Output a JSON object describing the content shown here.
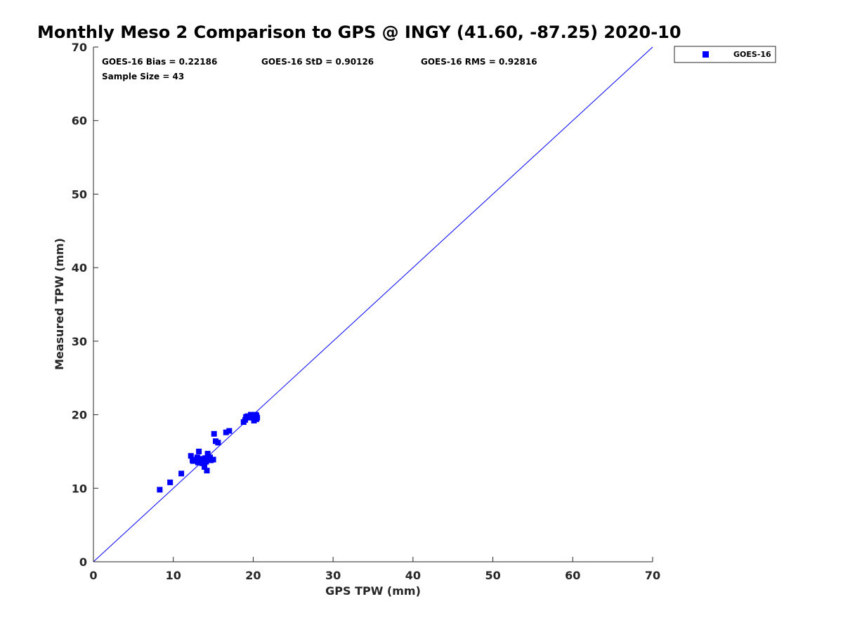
{
  "chart_data": {
    "type": "scatter",
    "title": "Monthly Meso 2 Comparison to GPS @ INGY (41.60, -87.25) 2020-10",
    "xlabel": "GPS TPW (mm)",
    "ylabel": "Measured TPW (mm)",
    "xlim": [
      0,
      70
    ],
    "ylim": [
      0,
      70
    ],
    "xticks": [
      "0",
      "10",
      "20",
      "30",
      "40",
      "50",
      "60",
      "70"
    ],
    "yticks": [
      "0",
      "10",
      "20",
      "30",
      "40",
      "50",
      "60",
      "70"
    ],
    "grid": false,
    "legend_position": "outside top-right",
    "reference_line": {
      "x": [
        0,
        70
      ],
      "y": [
        0,
        70
      ]
    },
    "annotations": {
      "bias": "GOES-16 Bias = 0.22186",
      "std": "GOES-16 StD = 0.90126",
      "rms": "GOES-16 RMS = 0.92816",
      "sample_size": "Sample Size = 43"
    },
    "series": [
      {
        "name": "GOES-16",
        "color": "#0000ff",
        "marker": "square",
        "points": [
          [
            8.3,
            9.8
          ],
          [
            9.6,
            10.8
          ],
          [
            11.0,
            12.0
          ],
          [
            12.2,
            14.4
          ],
          [
            12.4,
            13.8
          ],
          [
            12.5,
            13.7
          ],
          [
            12.9,
            13.9
          ],
          [
            13.0,
            14.2
          ],
          [
            13.1,
            13.5
          ],
          [
            13.2,
            15.0
          ],
          [
            13.4,
            13.6
          ],
          [
            13.5,
            14.0
          ],
          [
            13.6,
            13.4
          ],
          [
            13.7,
            13.9
          ],
          [
            13.8,
            13.6
          ],
          [
            13.9,
            12.9
          ],
          [
            14.0,
            14.1
          ],
          [
            14.1,
            13.6
          ],
          [
            14.2,
            12.4
          ],
          [
            14.3,
            14.7
          ],
          [
            14.4,
            13.9
          ],
          [
            14.6,
            14.2
          ],
          [
            14.7,
            13.8
          ],
          [
            15.0,
            13.9
          ],
          [
            15.1,
            17.4
          ],
          [
            15.3,
            16.4
          ],
          [
            15.6,
            16.2
          ],
          [
            16.6,
            17.6
          ],
          [
            17.0,
            17.8
          ],
          [
            18.8,
            19.0
          ],
          [
            19.0,
            19.3
          ],
          [
            19.1,
            19.7
          ],
          [
            19.3,
            19.8
          ],
          [
            19.5,
            19.6
          ],
          [
            19.7,
            20.0
          ],
          [
            19.9,
            19.8
          ],
          [
            20.0,
            19.9
          ],
          [
            20.1,
            19.2
          ],
          [
            20.2,
            19.6
          ],
          [
            20.3,
            20.0
          ],
          [
            20.4,
            19.4
          ],
          [
            20.5,
            19.6
          ],
          [
            20.4,
            19.9
          ]
        ]
      }
    ]
  }
}
